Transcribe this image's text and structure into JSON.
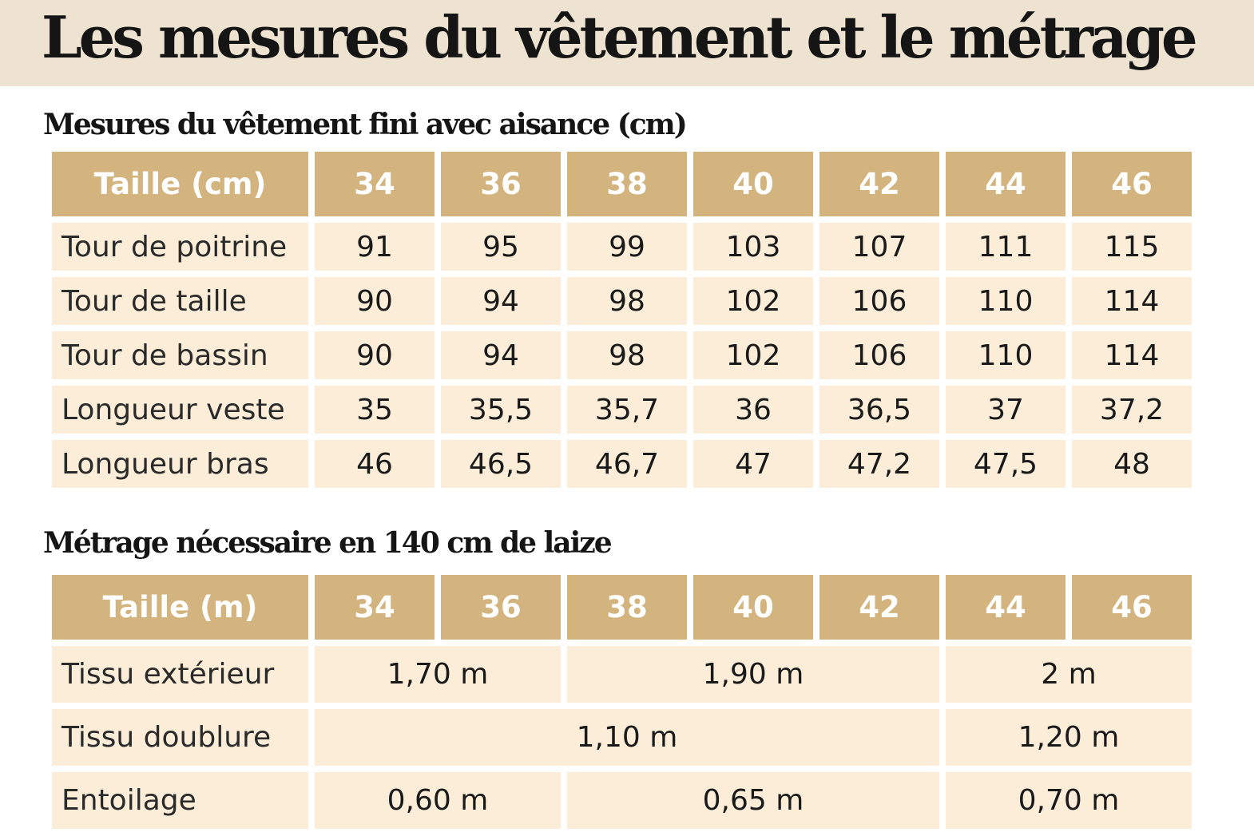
{
  "title": "Les mesures du vêtement et le métrage",
  "table1": {
    "title": "Mesures du vêtement fini avec aisance (cm)",
    "header_label": "Taille (cm)",
    "sizes": [
      "34",
      "36",
      "38",
      "40",
      "42",
      "44",
      "46"
    ],
    "rows": [
      {
        "label": "Tour de poitrine",
        "values": [
          "91",
          "95",
          "99",
          "103",
          "107",
          "111",
          "115"
        ]
      },
      {
        "label": "Tour de taille",
        "values": [
          "90",
          "94",
          "98",
          "102",
          "106",
          "110",
          "114"
        ]
      },
      {
        "label": "Tour de bassin",
        "values": [
          "90",
          "94",
          "98",
          "102",
          "106",
          "110",
          "114"
        ]
      },
      {
        "label": "Longueur veste",
        "values": [
          "35",
          "35,5",
          "35,7",
          "36",
          "36,5",
          "37",
          "37,2"
        ]
      },
      {
        "label": "Longueur bras",
        "values": [
          "46",
          "46,5",
          "46,7",
          "47",
          "47,2",
          "47,5",
          "48"
        ]
      }
    ]
  },
  "table2": {
    "title": "Métrage nécessaire en 140 cm de laize",
    "header_label": "Taille (m)",
    "sizes": [
      "34",
      "36",
      "38",
      "40",
      "42",
      "44",
      "46"
    ],
    "rows": [
      {
        "label": "Tissu extérieur",
        "cells": [
          {
            "value": "1,70 m",
            "sizes": "34-36"
          },
          {
            "value": "1,90 m",
            "sizes": "38-42"
          },
          {
            "value": "2 m",
            "sizes": "44-46"
          }
        ]
      },
      {
        "label": "Tissu doublure",
        "cells": [
          {
            "value": "1,10 m",
            "sizes": "34-42"
          },
          {
            "value": "1,20 m",
            "sizes": "44-46"
          }
        ]
      },
      {
        "label": "Entoilage",
        "cells": [
          {
            "value": "0,60 m",
            "sizes": "34-36"
          },
          {
            "value": "0,65 m",
            "sizes": "38-42"
          },
          {
            "value": "0,70 m",
            "sizes": "44-46"
          }
        ]
      }
    ]
  },
  "colors": {
    "banner_bg": "#ede3d0",
    "header_bg": "#d4b47e",
    "cell_bg": "#fbedd8"
  }
}
